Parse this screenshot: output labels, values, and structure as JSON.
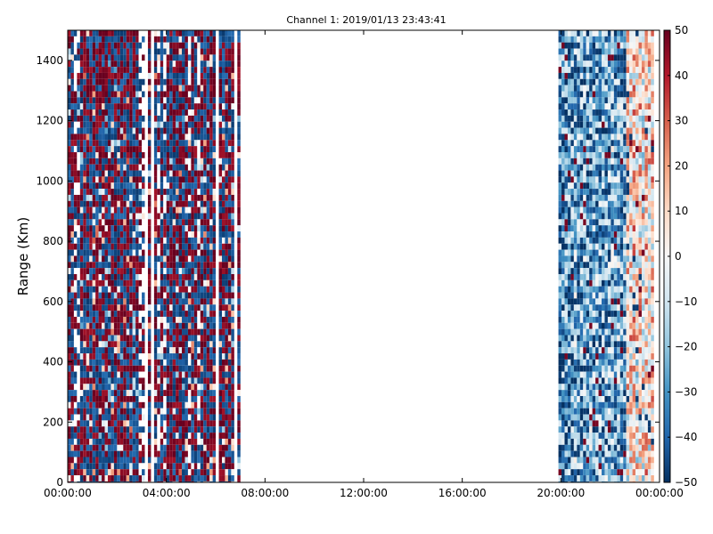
{
  "chart_data": {
    "type": "heatmap",
    "title": "Channel 1: 2019/01/13 23:43:41",
    "xlabel": "",
    "ylabel": "Range (Km)",
    "xlim": [
      "00:00:00",
      "00:00:00 (+24h)"
    ],
    "x_ticks": [
      "00:00:00",
      "04:00:00",
      "08:00:00",
      "12:00:00",
      "16:00:00",
      "20:00:00",
      "00:00:00"
    ],
    "ylim": [
      0,
      1500
    ],
    "y_ticks": [
      "0",
      "200",
      "400",
      "600",
      "800",
      "1000",
      "1200",
      "1400"
    ],
    "colorbar": {
      "colormap": "RdBu_r",
      "range": [
        -50,
        50
      ],
      "ticks": [
        "50",
        "40",
        "30",
        "20",
        "10",
        "0",
        "−10",
        "−20",
        "−30",
        "−40",
        "−50"
      ],
      "low_color": "#053061",
      "mid_color": "#f7f7f7",
      "high_color": "#67001f"
    },
    "data_coverage_hours": [
      {
        "start": 0.0,
        "end": 7.1,
        "note": "noisy strongly alternating values, many near ±50"
      },
      {
        "start": 19.9,
        "end": 23.9,
        "note": "moderate values, mostly -40 to 20"
      }
    ],
    "grid": false,
    "legend": "colorbar-right"
  }
}
